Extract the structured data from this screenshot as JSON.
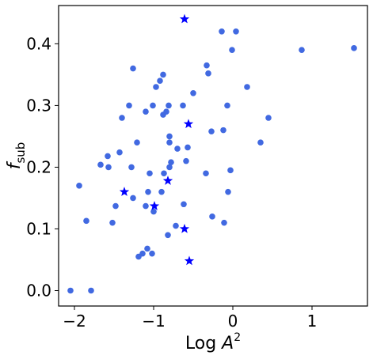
{
  "chart_data": {
    "type": "scatter",
    "xlabel_base": "Log ",
    "xlabel_var": "A",
    "xlabel_sup": "2",
    "ylabel_var": "f",
    "ylabel_sub": "sub",
    "xlim": [
      -2.2,
      1.7
    ],
    "ylim": [
      -0.025,
      0.462
    ],
    "xticks": [
      {
        "value": -2,
        "label": "−2"
      },
      {
        "value": -1,
        "label": "−1"
      },
      {
        "value": 0,
        "label": "0"
      },
      {
        "value": 1,
        "label": "1"
      }
    ],
    "yticks": [
      {
        "value": 0.0,
        "label": "0.0"
      },
      {
        "value": 0.1,
        "label": "0.1"
      },
      {
        "value": 0.2,
        "label": "0.2"
      },
      {
        "value": 0.3,
        "label": "0.3"
      },
      {
        "value": 0.4,
        "label": "0.4"
      }
    ],
    "grid": false,
    "series": [
      {
        "marker": "circle",
        "color": "#4169E1",
        "points": [
          [
            -2.05,
            0.0
          ],
          [
            -1.79,
            0.0
          ],
          [
            -1.94,
            0.17
          ],
          [
            -1.85,
            0.113
          ],
          [
            -1.67,
            0.204
          ],
          [
            -1.58,
            0.218
          ],
          [
            -1.57,
            0.2
          ],
          [
            -1.52,
            0.11
          ],
          [
            -1.48,
            0.137
          ],
          [
            -1.43,
            0.224
          ],
          [
            -1.4,
            0.28
          ],
          [
            -1.31,
            0.3
          ],
          [
            -1.28,
            0.2
          ],
          [
            -1.26,
            0.36
          ],
          [
            -1.26,
            0.15
          ],
          [
            -1.21,
            0.24
          ],
          [
            -1.19,
            0.055
          ],
          [
            -1.14,
            0.06
          ],
          [
            -1.1,
            0.29
          ],
          [
            -1.1,
            0.137
          ],
          [
            -1.08,
            0.068
          ],
          [
            -1.07,
            0.16
          ],
          [
            -1.05,
            0.19
          ],
          [
            -1.02,
            0.06
          ],
          [
            -1.01,
            0.3
          ],
          [
            -1.0,
            0.128
          ],
          [
            -0.97,
            0.33
          ],
          [
            -0.92,
            0.34
          ],
          [
            -0.9,
            0.16
          ],
          [
            -0.88,
            0.35
          ],
          [
            -0.88,
            0.285
          ],
          [
            -0.87,
            0.19
          ],
          [
            -0.84,
            0.29
          ],
          [
            -0.82,
            0.09
          ],
          [
            -0.81,
            0.3
          ],
          [
            -0.8,
            0.24
          ],
          [
            -0.8,
            0.25
          ],
          [
            -0.8,
            0.2
          ],
          [
            -0.78,
            0.208
          ],
          [
            -0.72,
            0.105
          ],
          [
            -0.7,
            0.23
          ],
          [
            -0.63,
            0.3
          ],
          [
            -0.62,
            0.14
          ],
          [
            -0.59,
            0.21
          ],
          [
            -0.57,
            0.232
          ],
          [
            -0.5,
            0.32
          ],
          [
            -0.34,
            0.19
          ],
          [
            -0.33,
            0.365
          ],
          [
            -0.31,
            0.352
          ],
          [
            -0.27,
            0.258
          ],
          [
            -0.26,
            0.12
          ],
          [
            -0.14,
            0.42
          ],
          [
            -0.12,
            0.26
          ],
          [
            -0.11,
            0.11
          ],
          [
            -0.07,
            0.3
          ],
          [
            -0.06,
            0.16
          ],
          [
            -0.03,
            0.195
          ],
          [
            -0.01,
            0.39
          ],
          [
            0.04,
            0.42
          ],
          [
            0.18,
            0.33
          ],
          [
            0.35,
            0.24
          ],
          [
            0.45,
            0.28
          ],
          [
            0.87,
            0.39
          ],
          [
            1.53,
            0.393
          ]
        ]
      },
      {
        "marker": "star",
        "color": "#0000FF",
        "points": [
          [
            -0.61,
            0.44
          ],
          [
            -0.56,
            0.27
          ],
          [
            -1.37,
            0.16
          ],
          [
            -0.82,
            0.178
          ],
          [
            -0.99,
            0.137
          ],
          [
            -0.61,
            0.1
          ],
          [
            -0.55,
            0.048
          ]
        ]
      }
    ]
  }
}
